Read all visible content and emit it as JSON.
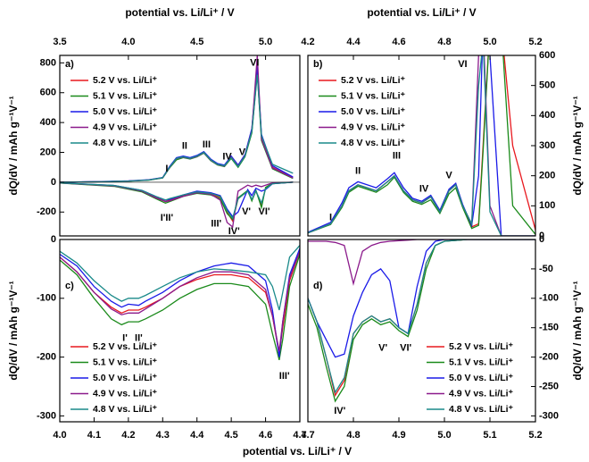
{
  "chart_data": [
    {
      "type": "line",
      "panel_label": "a)",
      "x_label": "potential vs. Li/Li⁺ / V",
      "y_label": "dQ/dV / mAh g⁻¹V⁻¹",
      "x_axis": "top",
      "y_axis": "left",
      "legend": "upper left",
      "xlim": [
        3.5,
        5.25
      ],
      "xticks": [
        3.5,
        {
          "value": 4,
          "label": "4.0"
        },
        4.5,
        {
          "value": 5,
          "label": "5.0"
        }
      ],
      "ylim": [
        -360,
        850
      ],
      "yticks": [
        -200,
        0,
        200,
        400,
        600,
        800
      ],
      "x": [
        3.5,
        3.8,
        4.0,
        4.15,
        4.25,
        4.3,
        4.35,
        4.4,
        4.45,
        4.5,
        4.55,
        4.6,
        4.65,
        4.7,
        4.75,
        4.8,
        4.85,
        4.9,
        4.94,
        4.97,
        5.05,
        5.2
      ],
      "x_discharge": [
        5.2,
        5.05,
        5.0,
        4.97,
        4.93,
        4.9,
        4.87,
        4.8,
        4.76,
        4.72,
        4.67,
        4.6,
        4.5,
        4.4,
        4.3,
        4.27,
        4.2,
        4.1,
        3.9,
        3.5
      ],
      "series": [
        {
          "name": "5.2 V vs. Li/Li⁺",
          "color": "#e8191f",
          "values": [
            0,
            3,
            8,
            15,
            30,
            100,
            160,
            170,
            160,
            175,
            200,
            150,
            120,
            110,
            170,
            110,
            180,
            350,
            760,
            300,
            100,
            30
          ],
          "discharge_values": [
            0,
            -10,
            -40,
            -150,
            -60,
            -120,
            -60,
            -110,
            -260,
            -200,
            -100,
            -80,
            -70,
            -90,
            -120,
            -130,
            -100,
            -60,
            -25,
            -5
          ]
        },
        {
          "name": "5.1 V vs. Li/Li⁺",
          "color": "#1a8a1a",
          "values": [
            0,
            3,
            7,
            14,
            28,
            95,
            150,
            165,
            155,
            170,
            195,
            145,
            115,
            105,
            160,
            100,
            170,
            330,
            740,
            280,
            90,
            25
          ],
          "discharge_values": [
            0,
            -8,
            -35,
            -170,
            -55,
            -125,
            -55,
            -105,
            -250,
            -210,
            -110,
            -85,
            -75,
            -95,
            -130,
            -140,
            -110,
            -65,
            -28,
            -6
          ]
        },
        {
          "name": "5.0 V vs. Li/Li⁺",
          "color": "#1a1ae8",
          "values": [
            0,
            4,
            9,
            16,
            32,
            105,
            165,
            175,
            165,
            180,
            205,
            155,
            125,
            115,
            175,
            115,
            185,
            360,
            780,
            320,
            110,
            35
          ],
          "discharge_values": [
            0,
            -10,
            -50,
            -60,
            -40,
            -90,
            -50,
            -200,
            -230,
            -180,
            -90,
            -70,
            -60,
            -85,
            -115,
            -120,
            -95,
            -55,
            -22,
            -4
          ]
        },
        {
          "name": "4.9 V vs. Li/Li⁺",
          "color": "#8b1a8b",
          "values": [
            0,
            3,
            8,
            15,
            30,
            98,
            158,
            168,
            158,
            172,
            198,
            148,
            118,
            108,
            168,
            108,
            178,
            345,
            850,
            290,
            95,
            28
          ],
          "discharge_values": [
            0,
            -5,
            -20,
            -30,
            -20,
            -30,
            -20,
            -60,
            -300,
            -270,
            -120,
            -80,
            -70,
            -95,
            -125,
            -130,
            -105,
            -60,
            -25,
            -5
          ]
        },
        {
          "name": "4.8 V vs. Li/Li⁺",
          "color": "#1a8a8a",
          "values": [
            0,
            3,
            8,
            15,
            30,
            100,
            160,
            170,
            160,
            175,
            200,
            150,
            120,
            110,
            165,
            105,
            175,
            340,
            720,
            310,
            120,
            60
          ],
          "discharge_values": [
            0,
            -10,
            -45,
            -140,
            -60,
            -115,
            -60,
            -110,
            -240,
            -190,
            -95,
            -75,
            -65,
            -85,
            -110,
            -120,
            -95,
            -55,
            -22,
            -4
          ]
        }
      ],
      "annotations": [
        {
          "text": "I",
          "x": 4.28,
          "y": 90
        },
        {
          "text": "II",
          "x": 4.41,
          "y": 240
        },
        {
          "text": "III",
          "x": 4.57,
          "y": 250
        },
        {
          "text": "IV",
          "x": 4.72,
          "y": 170
        },
        {
          "text": "V",
          "x": 4.83,
          "y": 200
        },
        {
          "text": "VI",
          "x": 4.92,
          "y": 800
        },
        {
          "text": "I'II'",
          "x": 4.28,
          "y": -240
        },
        {
          "text": "III'",
          "x": 4.64,
          "y": -280
        },
        {
          "text": "IV'",
          "x": 4.77,
          "y": -330
        },
        {
          "text": "V'",
          "x": 4.86,
          "y": -200
        },
        {
          "text": "VI'",
          "x": 4.99,
          "y": -200
        }
      ]
    },
    {
      "type": "line",
      "panel_label": "b)",
      "x_label": "potential vs. Li/Li⁺ / V",
      "y_label": "dQ/dV / mAh g⁻¹V⁻¹",
      "x_axis": "top",
      "y_axis": "right",
      "legend": "upper left",
      "xlim": [
        4.2,
        5.2
      ],
      "xticks": [
        4.2,
        4.4,
        4.6,
        4.8,
        {
          "value": 5,
          "label": "5.0"
        },
        5.2
      ],
      "ylim": [
        0,
        600
      ],
      "yticks": [
        0,
        100,
        200,
        300,
        400,
        500,
        600
      ],
      "x": [
        4.2,
        4.3,
        4.35,
        4.38,
        4.42,
        4.46,
        4.5,
        4.55,
        4.58,
        4.62,
        4.66,
        4.7,
        4.74,
        4.78,
        4.82,
        4.85,
        4.88,
        4.92,
        4.95,
        4.97,
        5.0,
        5.05,
        5.1,
        5.2
      ],
      "series": [
        {
          "name": "5.2 V vs. Li/Li⁺",
          "color": "#e8191f",
          "values": [
            10,
            40,
            100,
            150,
            170,
            160,
            150,
            180,
            200,
            150,
            120,
            110,
            130,
            80,
            150,
            170,
            100,
            30,
            40,
            300,
            700,
            700,
            300,
            20
          ]
        },
        {
          "name": "5.1 V vs. Li/Li⁺",
          "color": "#1a8a1a",
          "values": [
            10,
            38,
            95,
            145,
            165,
            155,
            145,
            170,
            195,
            145,
            115,
            105,
            120,
            75,
            140,
            160,
            95,
            25,
            35,
            280,
            700,
            700,
            100,
            5
          ]
        },
        {
          "name": "5.0 V vs. Li/Li⁺",
          "color": "#1a1ae8",
          "values": [
            12,
            45,
            110,
            160,
            180,
            170,
            160,
            190,
            210,
            160,
            125,
            115,
            135,
            85,
            155,
            175,
            105,
            35,
            200,
            700,
            600,
            0,
            0,
            0
          ]
        },
        {
          "name": "4.9 V vs. Li/Li⁺",
          "color": "#8b1a8b",
          "values": [
            10,
            40,
            100,
            150,
            170,
            160,
            150,
            180,
            200,
            150,
            120,
            110,
            130,
            80,
            150,
            170,
            100,
            40,
            600,
            700,
            100,
            0,
            0,
            0
          ]
        },
        {
          "name": "4.8 V vs. Li/Li⁺",
          "color": "#1a8a8a",
          "values": [
            10,
            40,
            100,
            150,
            170,
            160,
            150,
            180,
            200,
            150,
            120,
            110,
            130,
            80,
            150,
            170,
            100,
            40,
            500,
            650,
            80,
            0,
            0,
            0
          ]
        }
      ],
      "annotations": [
        {
          "text": "I",
          "x": 4.3,
          "y": 60
        },
        {
          "text": "II",
          "x": 4.42,
          "y": 215
        },
        {
          "text": "III",
          "x": 4.59,
          "y": 265
        },
        {
          "text": "IV",
          "x": 4.71,
          "y": 155
        },
        {
          "text": "V",
          "x": 4.82,
          "y": 200
        },
        {
          "text": "VI",
          "x": 4.88,
          "y": 570
        }
      ]
    },
    {
      "type": "line",
      "panel_label": "c)",
      "x_label": "potential vs. Li/Li⁺ / V",
      "y_label": "dQ/dV / mAh g⁻¹V⁻¹",
      "x_axis": "bottom",
      "y_axis": "left",
      "legend": "lower left",
      "xlim": [
        4.0,
        4.7
      ],
      "xticks": [
        {
          "value": 4,
          "label": "4.0"
        },
        4.1,
        4.2,
        4.3,
        4.4,
        4.5,
        4.6,
        4.7
      ],
      "ylim": [
        -310,
        0
      ],
      "yticks": [
        -300,
        -200,
        -100,
        0
      ],
      "x": [
        4.0,
        4.05,
        4.1,
        4.15,
        4.18,
        4.2,
        4.23,
        4.25,
        4.3,
        4.35,
        4.4,
        4.45,
        4.5,
        4.55,
        4.6,
        4.62,
        4.64,
        4.65,
        4.67,
        4.7
      ],
      "series": [
        {
          "name": "5.2 V vs. Li/Li⁺",
          "color": "#e8191f",
          "values": [
            -30,
            -55,
            -90,
            -115,
            -125,
            -120,
            -120,
            -115,
            -100,
            -80,
            -68,
            -60,
            -60,
            -65,
            -90,
            -130,
            -195,
            -150,
            -70,
            -20
          ]
        },
        {
          "name": "5.1 V vs. Li/Li⁺",
          "color": "#1a8a1a",
          "values": [
            -35,
            -60,
            -100,
            -135,
            -145,
            -140,
            -140,
            -135,
            -120,
            -100,
            -85,
            -75,
            -75,
            -80,
            -110,
            -160,
            -205,
            -170,
            -80,
            -25
          ]
        },
        {
          "name": "5.0 V vs. Li/Li⁺",
          "color": "#1a1ae8",
          "values": [
            -25,
            -45,
            -80,
            -105,
            -115,
            -110,
            -112,
            -105,
            -90,
            -70,
            -55,
            -45,
            -40,
            -45,
            -70,
            -120,
            -200,
            -140,
            -60,
            -15
          ]
        },
        {
          "name": "4.9 V vs. Li/Li⁺",
          "color": "#8b1a8b",
          "values": [
            -30,
            -55,
            -90,
            -118,
            -128,
            -125,
            -125,
            -118,
            -100,
            -80,
            -65,
            -55,
            -55,
            -60,
            -85,
            -130,
            -190,
            -140,
            -65,
            -20
          ]
        },
        {
          "name": "4.8 V vs. Li/Li⁺",
          "color": "#1a8a8a",
          "values": [
            -20,
            -40,
            -70,
            -95,
            -105,
            -100,
            -100,
            -95,
            -80,
            -65,
            -55,
            -50,
            -52,
            -55,
            -60,
            -80,
            -120,
            -90,
            -30,
            -10
          ]
        }
      ],
      "annotations": [
        {
          "text": "I'",
          "x": 4.19,
          "y": -168
        },
        {
          "text": "II'",
          "x": 4.23,
          "y": -168
        },
        {
          "text": "III'",
          "x": 4.655,
          "y": -233
        }
      ]
    },
    {
      "type": "line",
      "panel_label": "d)",
      "y_label": "dQ/dV / mAh g⁻¹V⁻¹",
      "x_axis": "bottom",
      "y_axis": "right",
      "legend": "lower right",
      "xlim": [
        4.7,
        5.2
      ],
      "xticks": [
        4.7,
        4.8,
        4.9,
        {
          "value": 5,
          "label": "5.0"
        },
        5.1,
        5.2
      ],
      "ylim": [
        -310,
        0
      ],
      "yticks": [
        -300,
        -250,
        -200,
        -150,
        -100,
        -50,
        0
      ],
      "x": [
        4.7,
        4.72,
        4.74,
        4.76,
        4.78,
        4.8,
        4.82,
        4.84,
        4.86,
        4.88,
        4.9,
        4.92,
        4.94,
        4.96,
        4.98,
        5.0,
        5.05,
        5.1,
        5.2
      ],
      "series": [
        {
          "name": "5.2 V vs. Li/Li⁺",
          "color": "#e8191f",
          "values": [
            -100,
            -140,
            -200,
            -265,
            -240,
            -160,
            -140,
            -130,
            -140,
            -135,
            -150,
            -160,
            -110,
            -40,
            -10,
            -3,
            0,
            0,
            0
          ]
        },
        {
          "name": "5.1 V vs. Li/Li⁺",
          "color": "#1a8a1a",
          "values": [
            -110,
            -150,
            -215,
            -275,
            -250,
            -170,
            -145,
            -135,
            -145,
            -140,
            -155,
            -165,
            -120,
            -50,
            -10,
            -3,
            0,
            0,
            0
          ]
        },
        {
          "name": "5.0 V vs. Li/Li⁺",
          "color": "#1a1ae8",
          "values": [
            -100,
            -140,
            -170,
            -200,
            -195,
            -130,
            -90,
            -60,
            -50,
            -70,
            -150,
            -160,
            -80,
            -20,
            -3,
            0,
            0,
            0,
            0
          ]
        },
        {
          "name": "4.9 V vs. Li/Li⁺",
          "color": "#8b1a8b",
          "values": [
            -3,
            -3,
            -3,
            -5,
            -10,
            -75,
            -20,
            -10,
            -5,
            -3,
            -2,
            -1,
            0,
            0,
            0,
            0,
            0,
            0,
            0
          ]
        },
        {
          "name": "4.8 V vs. Li/Li⁺",
          "color": "#1a8a8a",
          "values": [
            -100,
            -140,
            -200,
            -260,
            -235,
            -160,
            -140,
            -130,
            -140,
            -135,
            -150,
            -160,
            -110,
            -40,
            -10,
            -3,
            0,
            0,
            0
          ]
        }
      ],
      "annotations": [
        {
          "text": "IV'",
          "x": 4.77,
          "y": -292
        },
        {
          "text": "V'",
          "x": 4.865,
          "y": -185
        },
        {
          "text": "VI'",
          "x": 4.915,
          "y": -185
        }
      ]
    }
  ]
}
